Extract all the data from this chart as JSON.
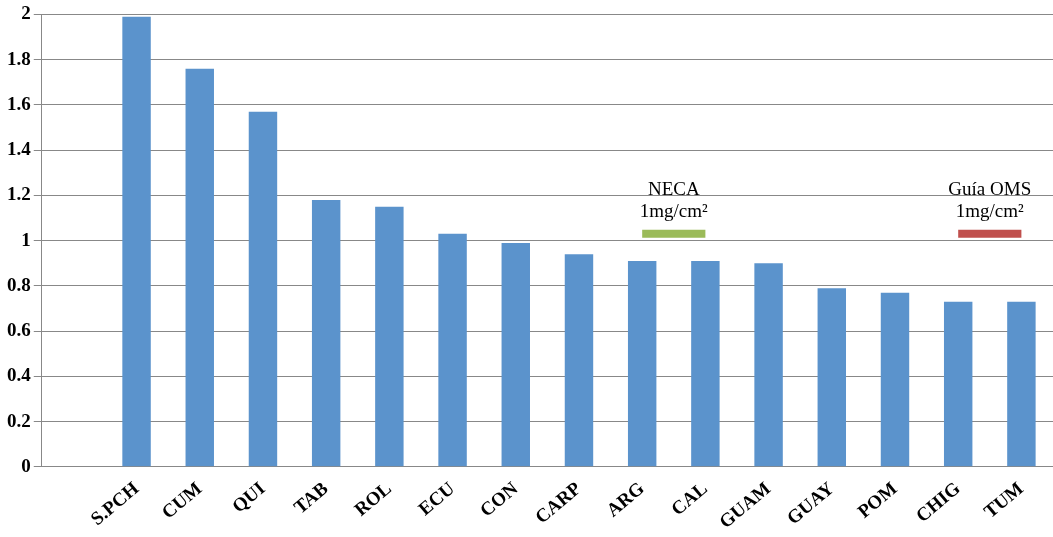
{
  "chart_data": {
    "type": "bar",
    "categories": [
      null,
      "S.PCH",
      "CUM",
      "QUI",
      "TAB",
      "ROL",
      "ECU",
      "CON",
      "CARP",
      "ARG",
      "CAL",
      "GUAM",
      "GUAY",
      "POM",
      "CHIG",
      "TUM"
    ],
    "series": [
      {
        "color": "#5b93cc",
        "values": [
          null,
          1.99,
          1.76,
          1.57,
          1.18,
          1.15,
          1.03,
          0.99,
          0.94,
          0.91,
          0.91,
          0.9,
          0.79,
          0.77,
          0.73,
          0.73
        ]
      },
      {
        "type": "line",
        "name": "NECA 1mg/cm²",
        "color": "#9bbb59",
        "values": [
          null,
          null,
          null,
          null,
          null,
          null,
          null,
          null,
          null,
          1.03,
          1.03,
          null,
          null,
          null,
          null,
          null
        ]
      },
      {
        "type": "line",
        "name": "Guía OMS 1mg/cm²",
        "color": "#c0504d",
        "values": [
          null,
          null,
          null,
          null,
          null,
          null,
          null,
          null,
          null,
          null,
          null,
          null,
          null,
          null,
          1.03,
          1.03
        ]
      }
    ],
    "ylim": [
      0,
      2
    ],
    "yticks": [
      0,
      0.2,
      0.4,
      0.6,
      0.8,
      1,
      1.2,
      1.4,
      1.6,
      1.8,
      2
    ],
    "grid": "y",
    "legend": false
  }
}
